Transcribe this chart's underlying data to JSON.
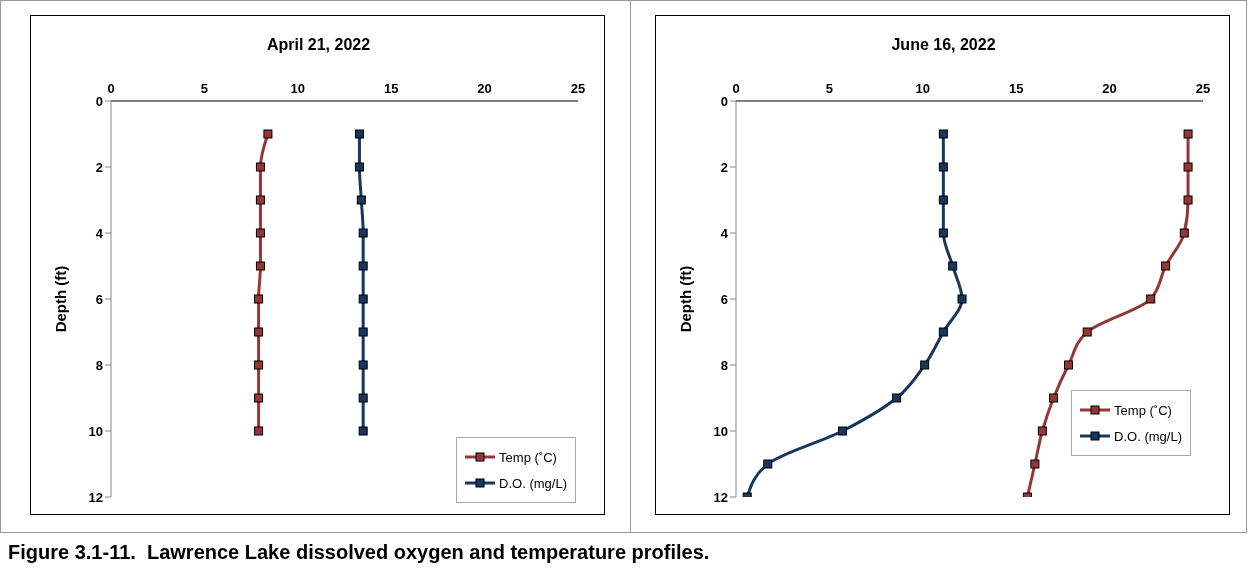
{
  "chart_data": [
    {
      "type": "line",
      "title": "April 21, 2022",
      "ylabel": "Depth (ft)",
      "orientation": "horizontal",
      "x": [
        1,
        2,
        3,
        4,
        5,
        6,
        7,
        8,
        9,
        10
      ],
      "series": [
        {
          "name": "Temp (˚C)",
          "color": "#953735",
          "values": [
            8.4,
            8.0,
            8.0,
            8.0,
            8.0,
            7.9,
            7.9,
            7.9,
            7.9,
            7.9
          ]
        },
        {
          "name": "D.O. (mg/L)",
          "color": "#17375e",
          "values": [
            13.3,
            13.3,
            13.4,
            13.5,
            13.5,
            13.5,
            13.5,
            13.5,
            13.5,
            13.5
          ]
        }
      ],
      "xlim": [
        0,
        25
      ],
      "xticks": [
        0,
        5,
        10,
        15,
        20,
        25
      ],
      "ylim": [
        12,
        0
      ],
      "yticks": [
        0,
        2,
        4,
        6,
        8,
        10,
        12
      ],
      "legend": "bottom right",
      "marker": "square",
      "line_style": "solid",
      "annotations": [
        "Figure 3.1-11.  Lawrence Lake dissolved oxygen and temperature profiles."
      ]
    },
    {
      "type": "line",
      "title": "June 16, 2022",
      "ylabel": "Depth (ft)",
      "orientation": "horizontal",
      "x": [
        1,
        2,
        3,
        4,
        5,
        6,
        7,
        8,
        9,
        10,
        11,
        12
      ],
      "series": [
        {
          "name": "Temp (˚C)",
          "color": "#953735",
          "values": [
            24.2,
            24.2,
            24.2,
            24.0,
            23.0,
            22.2,
            18.8,
            17.8,
            17.0,
            16.4,
            16.0,
            15.6
          ]
        },
        {
          "name": "D.O. (mg/L)",
          "color": "#17375e",
          "values": [
            11.1,
            11.1,
            11.1,
            11.1,
            11.6,
            12.1,
            11.1,
            10.1,
            8.6,
            5.7,
            1.7,
            0.6
          ]
        }
      ],
      "xlim": [
        0,
        25
      ],
      "xticks": [
        0,
        5,
        10,
        15,
        20,
        25
      ],
      "ylim": [
        12,
        0
      ],
      "yticks": [
        0,
        2,
        4,
        6,
        8,
        10,
        12
      ],
      "legend": "bottom right",
      "marker": "square",
      "line_style": "solid"
    }
  ]
}
